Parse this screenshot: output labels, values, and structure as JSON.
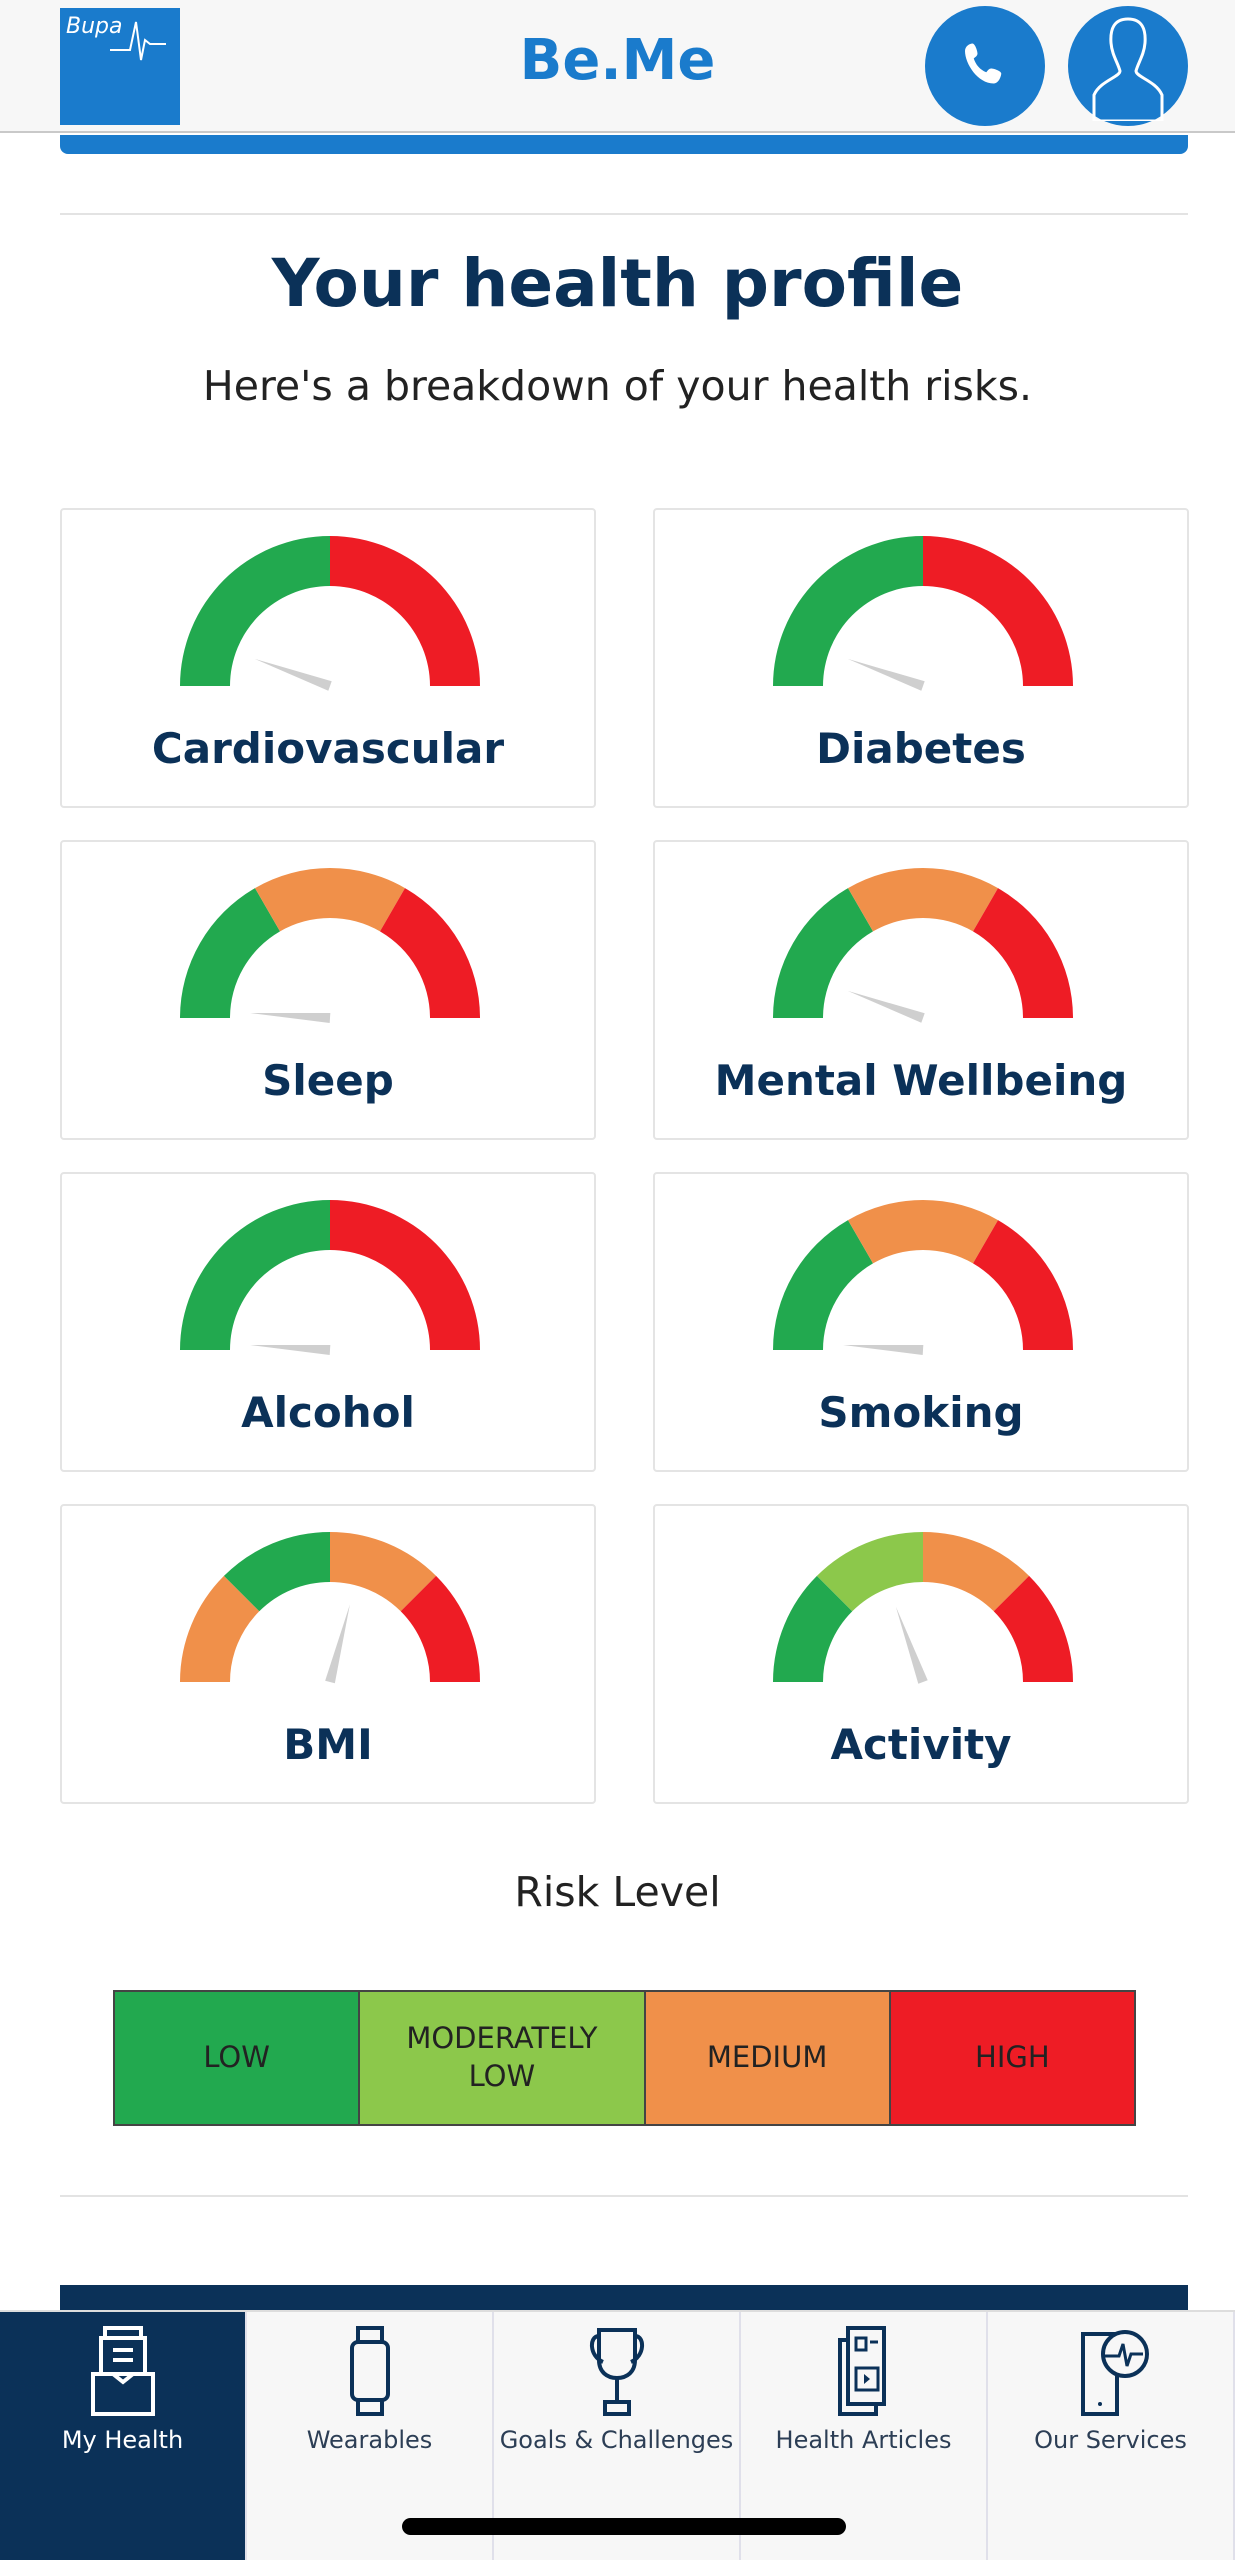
{
  "header": {
    "logo_text": "Bupa",
    "title": "Be.Me",
    "call_icon": "phone-icon",
    "profile_icon": "user-icon"
  },
  "main": {
    "title": "Your health profile",
    "subtitle": "Here's a breakdown of your health risks.",
    "gauges": [
      {
        "label": "Cardiovascular",
        "segments": [
          "#22a94f",
          "#ee1c25"
        ],
        "value": 0.11
      },
      {
        "label": "Diabetes",
        "segments": [
          "#22a94f",
          "#ee1c25"
        ],
        "value": 0.11
      },
      {
        "label": "Sleep",
        "segments": [
          "#22a94f",
          "#f0904a",
          "#ee1c25"
        ],
        "value": 0.02
      },
      {
        "label": "Mental Wellbeing",
        "segments": [
          "#22a94f",
          "#f0904a",
          "#ee1c25"
        ],
        "value": 0.11
      },
      {
        "label": "Alcohol",
        "segments": [
          "#22a94f",
          "#ee1c25"
        ],
        "value": 0.02
      },
      {
        "label": "Smoking",
        "segments": [
          "#22a94f",
          "#f0904a",
          "#ee1c25"
        ],
        "value": 0.02
      },
      {
        "label": "BMI",
        "segments": [
          "#f0904a",
          "#22a94f",
          "#f0904a",
          "#ee1c25"
        ],
        "value": 0.58
      },
      {
        "label": "Activity",
        "segments": [
          "#22a94f",
          "#8cc84b",
          "#f0904a",
          "#ee1c25"
        ],
        "value": 0.39
      }
    ],
    "risk_level": {
      "title": "Risk Level",
      "levels": [
        {
          "label": "LOW",
          "color": "#22a94f"
        },
        {
          "label": "MODERATELY LOW",
          "color": "#8cc84b"
        },
        {
          "label": "MEDIUM",
          "color": "#f0904a"
        },
        {
          "label": "HIGH",
          "color": "#ee1c25"
        }
      ]
    }
  },
  "nav": {
    "items": [
      {
        "label": "My Health",
        "icon": "inbox-list-icon",
        "active": true
      },
      {
        "label": "Wearables",
        "icon": "smartwatch-icon"
      },
      {
        "label": "Goals & Challenges",
        "icon": "trophy-icon"
      },
      {
        "label": "Health Articles",
        "icon": "newspaper-icon"
      },
      {
        "label": "Our Services",
        "icon": "phone-heartbeat-icon"
      }
    ]
  }
}
